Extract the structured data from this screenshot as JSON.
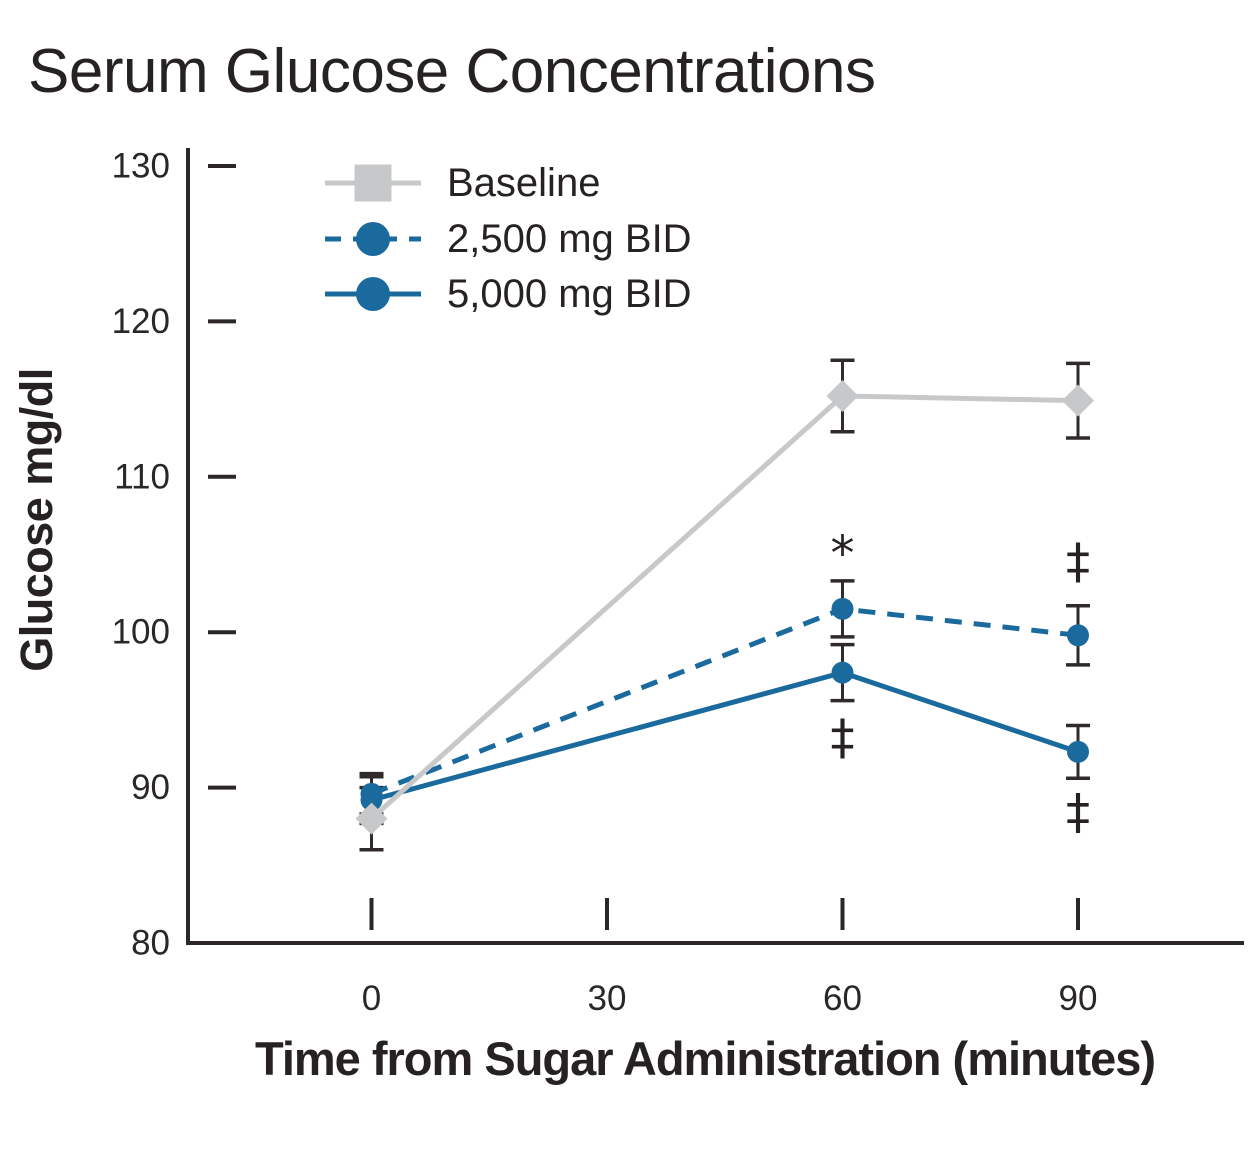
{
  "title": "Serum Glucose Concentrations",
  "chart_data": {
    "type": "line",
    "title": "Serum Glucose Concentrations",
    "xlabel": "Time from Sugar Administration (minutes)",
    "ylabel": "Glucose mg/dl",
    "ylim": [
      80,
      130
    ],
    "y_ticks": [
      130,
      120,
      110,
      100,
      90,
      80
    ],
    "x_ticks": [
      0,
      30,
      60,
      90
    ],
    "grid": false,
    "legend_position": "top-left-inside",
    "axis_color": "#2b2728",
    "error_bar_color": "#2f2b2c",
    "series": [
      {
        "name": "Baseline",
        "marker": "diamond",
        "line_style": "solid",
        "color": "#c7c8c9",
        "x": [
          0,
          60,
          90
        ],
        "values": [
          88.0,
          115.2,
          114.9
        ],
        "errors": [
          2.0,
          2.3,
          2.4
        ]
      },
      {
        "name": "2,500 mg BID",
        "marker": "circle",
        "line_style": "dashed",
        "color": "#1a6a9e",
        "x": [
          0,
          60,
          90
        ],
        "values": [
          89.6,
          101.5,
          99.8
        ],
        "errors": [
          1.3,
          1.8,
          1.9
        ]
      },
      {
        "name": "5,000 mg BID",
        "marker": "circle",
        "line_style": "solid",
        "color": "#1a6a9e",
        "x": [
          0,
          60,
          90
        ],
        "values": [
          89.2,
          97.4,
          92.3
        ],
        "errors": [
          1.5,
          1.8,
          1.7
        ]
      }
    ],
    "annotations": [
      {
        "symbol": "*",
        "time": 60,
        "value": 105.4
      },
      {
        "symbol": "‡",
        "time": 60,
        "value": 93.1
      },
      {
        "symbol": "‡",
        "time": 90,
        "value": 104.4
      },
      {
        "symbol": "‡",
        "time": 90,
        "value": 88.3
      }
    ]
  }
}
